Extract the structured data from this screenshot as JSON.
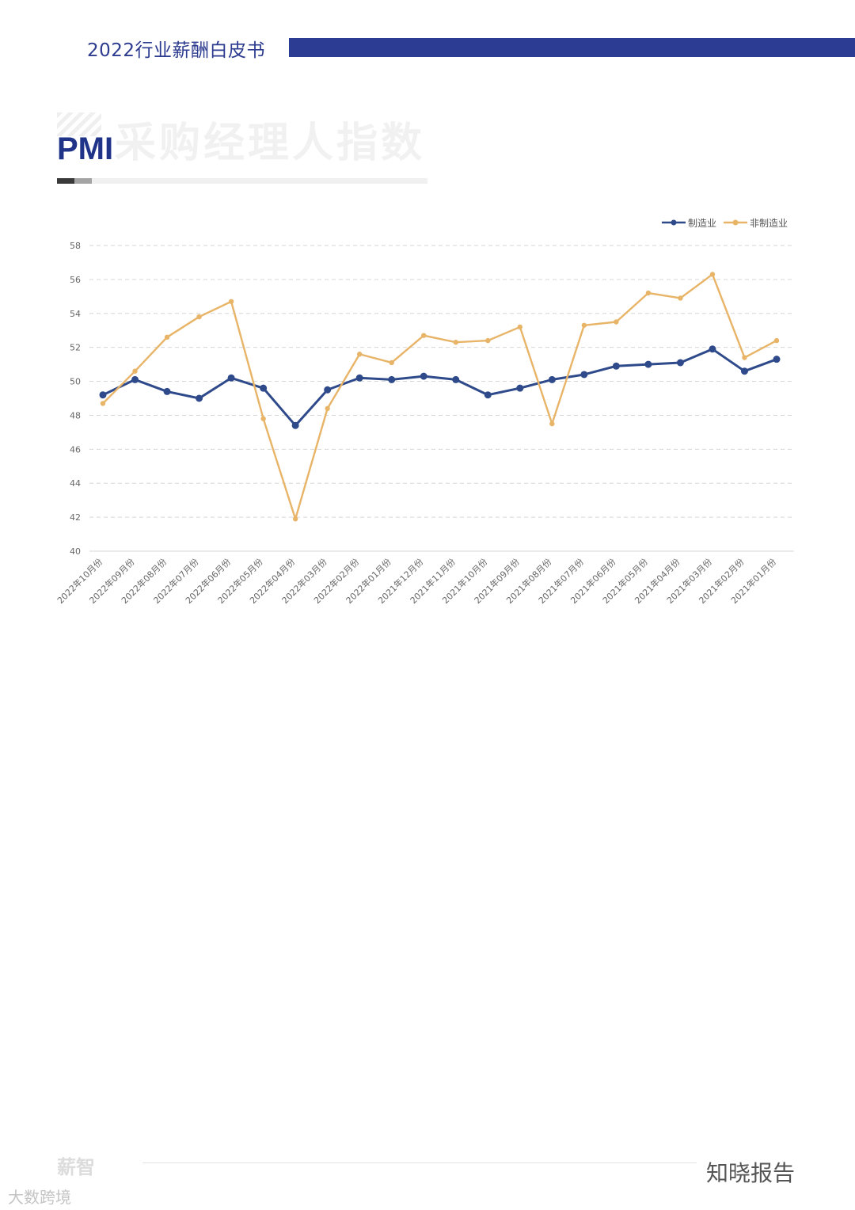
{
  "header": {
    "title": "2022行业薪酬白皮书"
  },
  "section": {
    "title_zh": "采购经理人指数",
    "title_en": "PMI"
  },
  "chart_data": {
    "type": "line",
    "categories": [
      "2022年10月份",
      "2022年09月份",
      "2022年08月份",
      "2022年07月份",
      "2022年06月份",
      "2022年05月份",
      "2022年04月份",
      "2022年03月份",
      "2022年02月份",
      "2022年01月份",
      "2021年12月份",
      "2021年11月份",
      "2021年10月份",
      "2021年09月份",
      "2021年08月份",
      "2021年07月份",
      "2021年06月份",
      "2021年05月份",
      "2021年04月份",
      "2021年03月份",
      "2021年02月份",
      "2021年01月份"
    ],
    "series": [
      {
        "name": "制造业",
        "color": "#2e4a8b",
        "values": [
          49.2,
          50.1,
          49.4,
          49.0,
          50.2,
          49.6,
          47.4,
          49.5,
          50.2,
          50.1,
          50.3,
          50.1,
          49.2,
          49.6,
          50.1,
          50.4,
          50.9,
          51.0,
          51.1,
          51.9,
          50.6,
          51.3
        ]
      },
      {
        "name": "非制造业",
        "color": "#e8b468",
        "values": [
          48.7,
          50.6,
          52.6,
          53.8,
          54.7,
          47.8,
          41.9,
          48.4,
          51.6,
          51.1,
          52.7,
          52.3,
          52.4,
          53.2,
          47.5,
          53.3,
          53.5,
          55.2,
          54.9,
          56.3,
          51.4,
          52.4
        ]
      }
    ],
    "ylim": [
      40,
      58
    ],
    "yticks": [
      "40",
      "42",
      "44",
      "46",
      "48",
      "50",
      "52",
      "54",
      "56",
      "58"
    ],
    "legend_position": "top-right",
    "grid": true
  },
  "footer": {
    "logo": "薪智",
    "brand": "知晓报告",
    "weibo": "大数跨境"
  }
}
